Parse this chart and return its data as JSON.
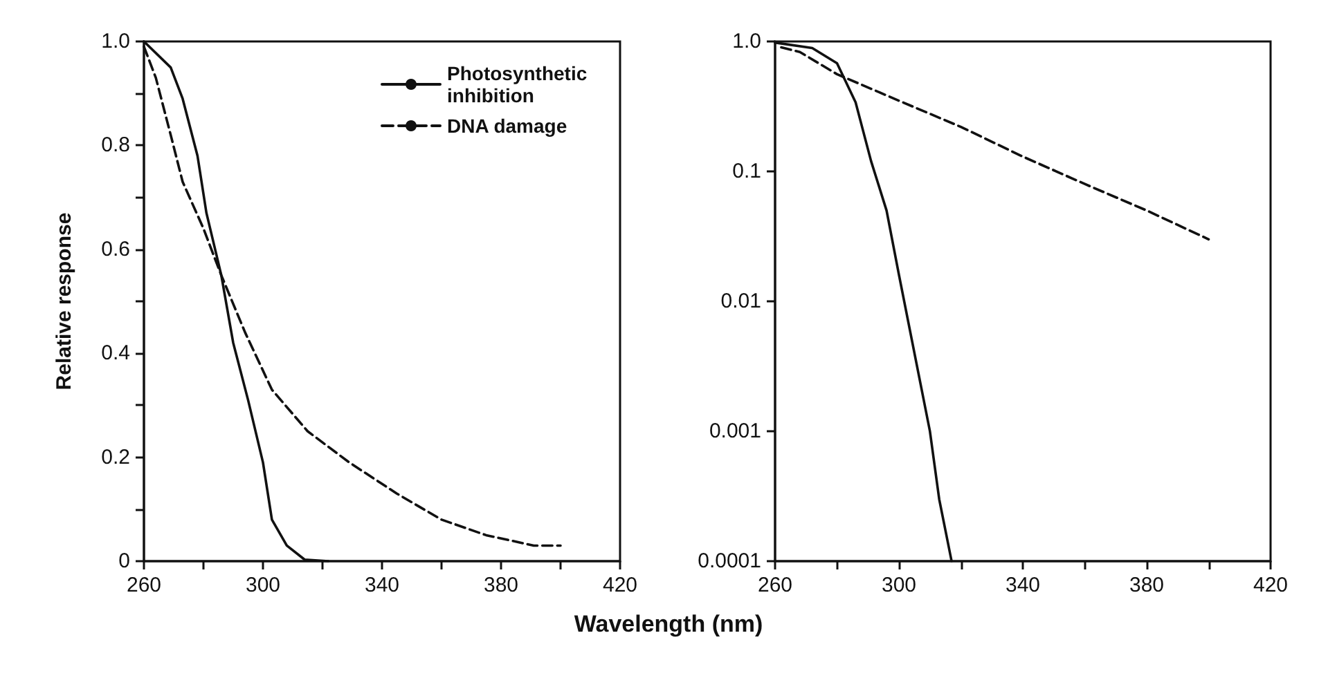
{
  "chart_data": [
    {
      "type": "line",
      "ylabel": "Relative response",
      "xlabel": "Wavelength (nm)",
      "legend": "top right",
      "xlim": [
        260,
        420
      ],
      "xticks": [
        260,
        {
          "value": 280,
          "label": null
        },
        300,
        {
          "value": 320,
          "label": null
        },
        340,
        {
          "value": 360,
          "label": null
        },
        380,
        {
          "value": 400,
          "label": null
        },
        420
      ],
      "ylim": [
        0,
        1
      ],
      "yticks": [
        0,
        {
          "value": 0.1,
          "label": null
        },
        0.2,
        {
          "value": 0.3,
          "label": null
        },
        0.4,
        {
          "value": 0.5,
          "label": null
        },
        0.6,
        {
          "value": 0.7,
          "label": null
        },
        0.8,
        {
          "value": 0.9,
          "label": null
        },
        {
          "value": 1,
          "label": "1.0"
        }
      ],
      "series": [
        {
          "name": "Photosynthetic inhibition",
          "color": "#111111",
          "line_style": "solid",
          "x": [
            260,
            269,
            273,
            278,
            281,
            286,
            290,
            295,
            300,
            303,
            308,
            314,
            322
          ],
          "values": [
            1.0,
            0.95,
            0.89,
            0.78,
            0.67,
            0.55,
            0.42,
            0.31,
            0.19,
            0.08,
            0.03,
            0.003,
            0
          ]
        },
        {
          "name": "DNA damage",
          "color": "#111111",
          "line_style": "dashed",
          "x": [
            260,
            264,
            269,
            273,
            280,
            286,
            294,
            303,
            315,
            329,
            345,
            360,
            375,
            391,
            400
          ],
          "values": [
            0.99,
            0.93,
            0.82,
            0.73,
            0.64,
            0.55,
            0.44,
            0.33,
            0.25,
            0.19,
            0.13,
            0.08,
            0.05,
            0.03,
            0.03
          ]
        }
      ]
    },
    {
      "type": "line",
      "log": "y",
      "xlim": [
        260,
        420
      ],
      "xticks": [
        260,
        {
          "value": 280,
          "label": null
        },
        300,
        {
          "value": 320,
          "label": null
        },
        340,
        {
          "value": 360,
          "label": null
        },
        380,
        {
          "value": 400,
          "label": null
        },
        420
      ],
      "ylim": [
        0.0001,
        1
      ],
      "yticks": [
        0.0001,
        0.001,
        0.01,
        0.1,
        {
          "value": 1,
          "label": "1.0"
        }
      ],
      "series": [
        {
          "color": "#111111",
          "line_style": "solid",
          "x": [
            260,
            272,
            280,
            286,
            291,
            296,
            300,
            305,
            310,
            313,
            317
          ],
          "values": [
            0.98,
            0.89,
            0.68,
            0.34,
            0.12,
            0.05,
            0.016,
            0.004,
            0.001,
            0.0003,
            0.0001
          ]
        },
        {
          "color": "#111111",
          "line_style": "dashed",
          "x": [
            262,
            268,
            280,
            300,
            320,
            340,
            360,
            380,
            400
          ],
          "values": [
            0.9,
            0.83,
            0.56,
            0.35,
            0.22,
            0.13,
            0.08,
            0.05,
            0.03
          ]
        }
      ]
    }
  ]
}
